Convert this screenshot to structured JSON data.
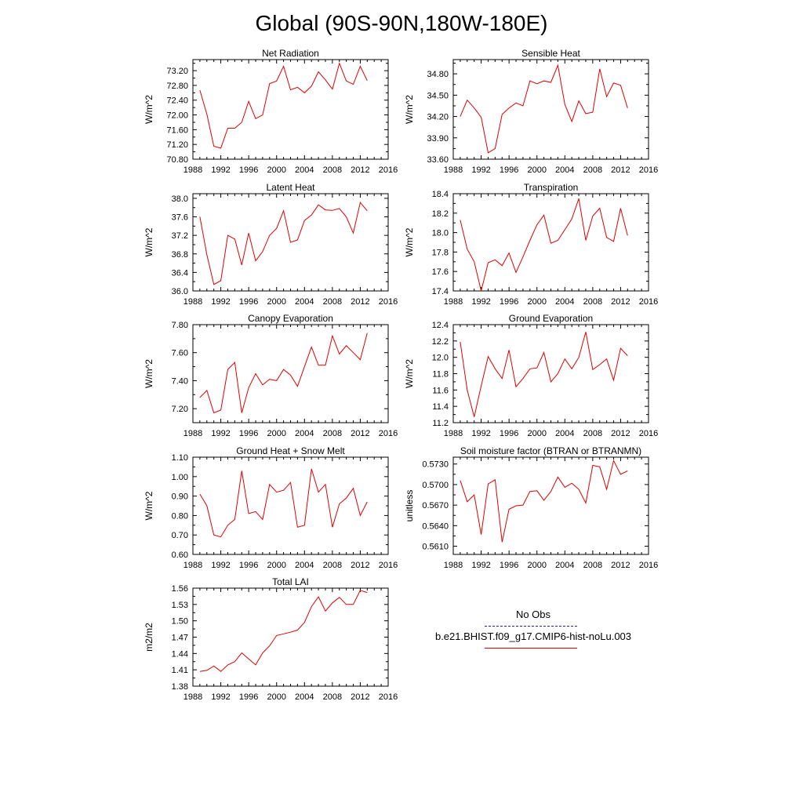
{
  "title": "Global (90S-90N,180W-180E)",
  "legend": {
    "entries": [
      {
        "label": "No Obs",
        "color": "#1e2a8a",
        "style": "dashed"
      },
      {
        "label": "b.e21.BHIST.f09_g17.CMIP6-hist-noLu.003",
        "color": "#e00000",
        "style": "solid"
      }
    ]
  },
  "chart_data": [
    {
      "type": "line",
      "title": "Net Radiation",
      "ylabel": "W/m^2",
      "xlim": [
        1988,
        2016
      ],
      "xticks": [
        1988,
        1992,
        1996,
        2000,
        2004,
        2008,
        2012,
        2016
      ],
      "ylim": [
        70.8,
        73.5
      ],
      "yticks": [
        70.8,
        71.2,
        71.6,
        72.0,
        72.4,
        72.8,
        73.2
      ],
      "yticklabels": [
        "70.80",
        "71.20",
        "71.60",
        "72.00",
        "72.40",
        "72.80",
        "73.20"
      ],
      "series": [
        {
          "color": "#e00000",
          "x": [
            1989,
            1990,
            1991,
            1992,
            1993,
            1994,
            1995,
            1996,
            1997,
            1998,
            1999,
            2000,
            2001,
            2002,
            2003,
            2004,
            2005,
            2006,
            2007,
            2008,
            2009,
            2010,
            2011,
            2012,
            2013
          ],
          "y": [
            72.67,
            72.02,
            71.15,
            71.1,
            71.64,
            71.64,
            71.8,
            72.37,
            71.9,
            72.0,
            72.85,
            72.92,
            73.32,
            72.68,
            72.75,
            72.6,
            72.78,
            73.17,
            72.95,
            72.7,
            73.4,
            72.92,
            72.83,
            73.32,
            72.93
          ]
        }
      ]
    },
    {
      "type": "line",
      "title": "Sensible Heat",
      "ylabel": "W/m^2",
      "xlim": [
        1988,
        2016
      ],
      "xticks": [
        1988,
        1992,
        1996,
        2000,
        2004,
        2008,
        2012,
        2016
      ],
      "ylim": [
        33.6,
        35.0
      ],
      "yticks": [
        33.6,
        33.9,
        34.2,
        34.5,
        34.8
      ],
      "yticklabels": [
        "33.60",
        "33.90",
        "34.20",
        "34.50",
        "34.80"
      ],
      "series": [
        {
          "color": "#e00000",
          "x": [
            1989,
            1990,
            1991,
            1992,
            1993,
            1994,
            1995,
            1996,
            1997,
            1998,
            1999,
            2000,
            2001,
            2002,
            2003,
            2004,
            2005,
            2006,
            2007,
            2008,
            2009,
            2010,
            2011,
            2012,
            2013
          ],
          "y": [
            34.2,
            34.43,
            34.32,
            34.19,
            33.69,
            33.75,
            34.23,
            34.32,
            34.39,
            34.35,
            34.7,
            34.66,
            34.7,
            34.68,
            34.92,
            34.37,
            34.13,
            34.42,
            34.24,
            34.26,
            34.87,
            34.48,
            34.67,
            34.64,
            34.32
          ]
        }
      ]
    },
    {
      "type": "line",
      "title": "Latent Heat",
      "ylabel": "W/m^2",
      "xlim": [
        1988,
        2016
      ],
      "xticks": [
        1988,
        1992,
        1996,
        2000,
        2004,
        2008,
        2012,
        2016
      ],
      "ylim": [
        36.0,
        38.1
      ],
      "yticks": [
        36.0,
        36.4,
        36.8,
        37.2,
        37.6,
        38.0
      ],
      "yticklabels": [
        "36.0",
        "36.4",
        "36.8",
        "37.2",
        "37.6",
        "38.0"
      ],
      "series": [
        {
          "color": "#e00000",
          "x": [
            1989,
            1990,
            1991,
            1992,
            1993,
            1994,
            1995,
            1996,
            1997,
            1998,
            1999,
            2000,
            2001,
            2002,
            2003,
            2004,
            2005,
            2006,
            2007,
            2008,
            2009,
            2010,
            2011,
            2012,
            2013
          ],
          "y": [
            37.6,
            36.78,
            36.14,
            36.22,
            37.2,
            37.12,
            36.56,
            37.25,
            36.65,
            36.85,
            37.2,
            37.35,
            37.73,
            37.05,
            37.1,
            37.52,
            37.64,
            37.86,
            37.75,
            37.74,
            37.78,
            37.6,
            37.25,
            37.91,
            37.73
          ]
        }
      ]
    },
    {
      "type": "line",
      "title": "Transpiration",
      "ylabel": "W/m^2",
      "xlim": [
        1988,
        2016
      ],
      "xticks": [
        1988,
        1992,
        1996,
        2000,
        2004,
        2008,
        2012,
        2016
      ],
      "ylim": [
        17.4,
        18.4
      ],
      "yticks": [
        17.4,
        17.6,
        17.8,
        18.0,
        18.2,
        18.4
      ],
      "yticklabels": [
        "17.4",
        "17.6",
        "17.8",
        "18.0",
        "18.2",
        "18.4"
      ],
      "series": [
        {
          "color": "#e00000",
          "x": [
            1989,
            1990,
            1991,
            1992,
            1993,
            1994,
            1995,
            1996,
            1997,
            1998,
            1999,
            2000,
            2001,
            2002,
            2003,
            2004,
            2005,
            2006,
            2007,
            2008,
            2009,
            2010,
            2011,
            2012,
            2013
          ],
          "y": [
            18.13,
            17.83,
            17.7,
            17.4,
            17.69,
            17.72,
            17.66,
            17.79,
            17.59,
            17.75,
            17.92,
            18.08,
            18.18,
            17.89,
            17.92,
            18.03,
            18.14,
            18.35,
            17.92,
            18.17,
            18.25,
            17.95,
            17.91,
            18.25,
            17.97
          ]
        }
      ]
    },
    {
      "type": "line",
      "title": "Canopy Evaporation",
      "ylabel": "W/m^2",
      "xlim": [
        1988,
        2016
      ],
      "xticks": [
        1988,
        1992,
        1996,
        2000,
        2004,
        2008,
        2012,
        2016
      ],
      "ylim": [
        7.1,
        7.8
      ],
      "yticks": [
        7.2,
        7.4,
        7.6,
        7.8
      ],
      "yticklabels": [
        "7.20",
        "7.40",
        "7.60",
        "7.80"
      ],
      "series": [
        {
          "color": "#e00000",
          "x": [
            1989,
            1990,
            1991,
            1992,
            1993,
            1994,
            1995,
            1996,
            1997,
            1998,
            1999,
            2000,
            2001,
            2002,
            2003,
            2004,
            2005,
            2006,
            2007,
            2008,
            2009,
            2010,
            2011,
            2012,
            2013
          ],
          "y": [
            7.28,
            7.33,
            7.17,
            7.19,
            7.48,
            7.53,
            7.17,
            7.35,
            7.45,
            7.37,
            7.41,
            7.4,
            7.48,
            7.44,
            7.36,
            7.5,
            7.64,
            7.51,
            7.51,
            7.72,
            7.59,
            7.65,
            7.6,
            7.55,
            7.74
          ]
        }
      ]
    },
    {
      "type": "line",
      "title": "Ground Evaporation",
      "ylabel": "W/m^2",
      "xlim": [
        1988,
        2016
      ],
      "xticks": [
        1988,
        1992,
        1996,
        2000,
        2004,
        2008,
        2012,
        2016
      ],
      "ylim": [
        11.2,
        12.4
      ],
      "yticks": [
        11.2,
        11.4,
        11.6,
        11.8,
        12.0,
        12.2,
        12.4
      ],
      "yticklabels": [
        "11.2",
        "11.4",
        "11.6",
        "11.8",
        "12.0",
        "12.2",
        "12.4"
      ],
      "series": [
        {
          "color": "#e00000",
          "x": [
            1989,
            1990,
            1991,
            1992,
            1993,
            1994,
            1995,
            1996,
            1997,
            1998,
            1999,
            2000,
            2001,
            2002,
            2003,
            2004,
            2005,
            2006,
            2007,
            2008,
            2009,
            2010,
            2011,
            2012,
            2013
          ],
          "y": [
            12.19,
            11.6,
            11.27,
            11.65,
            12.01,
            11.86,
            11.74,
            12.09,
            11.64,
            11.74,
            11.86,
            11.87,
            12.06,
            11.7,
            11.8,
            11.98,
            11.86,
            12.0,
            12.31,
            11.85,
            11.91,
            11.98,
            11.72,
            12.11,
            12.02
          ]
        }
      ]
    },
    {
      "type": "line",
      "title": "Ground Heat + Snow Melt",
      "ylabel": "W/m^2",
      "xlim": [
        1988,
        2016
      ],
      "xticks": [
        1988,
        1992,
        1996,
        2000,
        2004,
        2008,
        2012,
        2016
      ],
      "ylim": [
        0.6,
        1.1
      ],
      "yticks": [
        0.6,
        0.7,
        0.8,
        0.9,
        1.0,
        1.1
      ],
      "yticklabels": [
        "0.60",
        "0.70",
        "0.80",
        "0.90",
        "1.00",
        "1.10"
      ],
      "series": [
        {
          "color": "#e00000",
          "x": [
            1989,
            1990,
            1991,
            1992,
            1993,
            1994,
            1995,
            1996,
            1997,
            1998,
            1999,
            2000,
            2001,
            2002,
            2003,
            2004,
            2005,
            2006,
            2007,
            2008,
            2009,
            2010,
            2011,
            2012,
            2013
          ],
          "y": [
            0.91,
            0.85,
            0.7,
            0.69,
            0.75,
            0.78,
            1.03,
            0.81,
            0.82,
            0.78,
            0.96,
            0.92,
            0.93,
            0.97,
            0.74,
            0.75,
            1.04,
            0.92,
            0.96,
            0.74,
            0.86,
            0.89,
            0.94,
            0.8,
            0.87
          ]
        }
      ]
    },
    {
      "type": "line",
      "title": "Soil moisture factor (BTRAN or BTRANMN)",
      "ylabel": "unitless",
      "xlim": [
        1988,
        2016
      ],
      "xticks": [
        1988,
        1992,
        1996,
        2000,
        2004,
        2008,
        2012,
        2016
      ],
      "ylim": [
        0.5598,
        0.574
      ],
      "yticks": [
        0.561,
        0.564,
        0.567,
        0.57,
        0.573
      ],
      "yticklabels": [
        "0.5610",
        "0.5640",
        "0.5670",
        "0.5700",
        "0.5730"
      ],
      "series": [
        {
          "color": "#e00000",
          "x": [
            1989,
            1990,
            1991,
            1992,
            1993,
            1994,
            1995,
            1996,
            1997,
            1998,
            1999,
            2000,
            2001,
            2002,
            2003,
            2004,
            2005,
            2006,
            2007,
            2008,
            2009,
            2010,
            2011,
            2012,
            2013
          ],
          "y": [
            0.5706,
            0.5675,
            0.5685,
            0.5627,
            0.5701,
            0.5707,
            0.5616,
            0.5664,
            0.5669,
            0.567,
            0.569,
            0.5691,
            0.5677,
            0.569,
            0.5711,
            0.5696,
            0.5702,
            0.5693,
            0.5673,
            0.5728,
            0.5726,
            0.5693,
            0.5735,
            0.5715,
            0.572
          ]
        }
      ]
    },
    {
      "type": "line",
      "title": "Total LAI",
      "ylabel": "m2/m2",
      "xlim": [
        1988,
        2016
      ],
      "xticks": [
        1988,
        1992,
        1996,
        2000,
        2004,
        2008,
        2012,
        2016
      ],
      "ylim": [
        1.38,
        1.56
      ],
      "yticks": [
        1.38,
        1.41,
        1.44,
        1.47,
        1.5,
        1.53,
        1.56
      ],
      "yticklabels": [
        "1.38",
        "1.41",
        "1.44",
        "1.47",
        "1.50",
        "1.53",
        "1.56"
      ],
      "series": [
        {
          "color": "#e00000",
          "x": [
            1989,
            1990,
            1991,
            1992,
            1993,
            1994,
            1995,
            1996,
            1997,
            1998,
            1999,
            2000,
            2001,
            2002,
            2003,
            2004,
            2005,
            2006,
            2007,
            2008,
            2009,
            2010,
            2011,
            2012,
            2013
          ],
          "y": [
            1.407,
            1.409,
            1.417,
            1.407,
            1.419,
            1.425,
            1.441,
            1.43,
            1.419,
            1.441,
            1.454,
            1.473,
            1.476,
            1.479,
            1.483,
            1.497,
            1.526,
            1.544,
            1.518,
            1.533,
            1.543,
            1.53,
            1.53,
            1.556,
            1.552
          ]
        }
      ]
    }
  ]
}
